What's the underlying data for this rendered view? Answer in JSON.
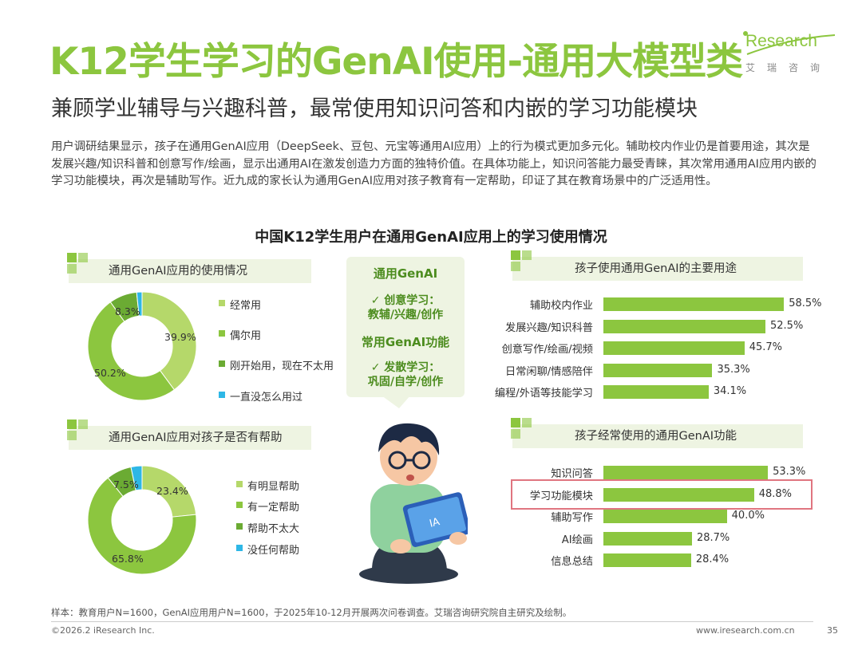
{
  "header": {
    "title": "K12学生学习的GenAI使用-通用大模型类",
    "subtitle": "兼顾学业辅导与兴趣科普，最常使用知识问答和内嵌的学习功能模块",
    "logo_word": "Research",
    "logo_cn": "艾瑞咨询"
  },
  "intro": "用户调研结果显示，孩子在通用GenAI应用（DeepSeek、豆包、元宝等通用AI应用）上的行为模式更加多元化。辅助校内作业仍是首要用途，其次是发展兴趣/知识科普和创意写作/绘画，显示出通用AI在激发创造力方面的独特价值。在具体功能上，知识问答能力最受青睐，其次常用通用AI应用内嵌的学习功能模块，再次是辅助写作。近九成的家长认为通用GenAI应用对孩子教育有一定帮助，印证了其在教育场景中的广泛适用性。",
  "main_title": "中国K12学生用户在通用GenAI应用上的学习使用情况",
  "bubble": {
    "line1": "通用GenAI",
    "line2": "✓ 创意学习：",
    "line3": "教辅/兴趣/创作",
    "line4": "常用GenAI功能",
    "line5": "✓ 发散学习：",
    "line6": "巩固/自学/创作"
  },
  "colors": {
    "green": "#8cc63f",
    "light": "#c5e08f",
    "mid": "#6bab33",
    "cyan": "#2eb7e6",
    "accent_box": "#e07580"
  },
  "chart_data": [
    {
      "type": "pie",
      "title": "通用GenAI应用的使用情况",
      "categories": [
        "经常用",
        "偶尔用",
        "刚开始用，现在不太用",
        "一直没怎么用过"
      ],
      "values": [
        39.9,
        50.2,
        8.3,
        1.6
      ],
      "labels": [
        "39.9%",
        "50.2%",
        "8.3%",
        ""
      ],
      "colors": [
        "#b5d86a",
        "#8cc63f",
        "#6bab33",
        "#2eb7e6"
      ]
    },
    {
      "type": "pie",
      "title": "通用GenAI应用对孩子是否有帮助",
      "categories": [
        "有明显帮助",
        "有一定帮助",
        "帮助不太大",
        "没任何帮助"
      ],
      "values": [
        23.4,
        65.8,
        7.5,
        3.3
      ],
      "labels": [
        "23.4%",
        "65.8%",
        "7.5%",
        ""
      ],
      "colors": [
        "#b5d86a",
        "#8cc63f",
        "#6bab33",
        "#2eb7e6"
      ]
    },
    {
      "type": "bar",
      "title": "孩子使用通用GenAI的主要用途",
      "categories": [
        "辅助校内作业",
        "发展兴趣/知识科普",
        "创意写作/绘画/视频",
        "日常闲聊/情感陪伴",
        "编程/外语等技能学习"
      ],
      "values": [
        58.5,
        52.5,
        45.7,
        35.3,
        34.1
      ],
      "labels": [
        "58.5%",
        "52.5%",
        "45.7%",
        "35.3%",
        "34.1%"
      ]
    },
    {
      "type": "bar",
      "title": "孩子经常使用的通用GenAI功能",
      "categories": [
        "知识问答",
        "学习功能模块",
        "辅助写作",
        "AI绘画",
        "信息总结"
      ],
      "values": [
        53.3,
        48.8,
        40.0,
        28.7,
        28.4
      ],
      "labels": [
        "53.3%",
        "48.8%",
        "40.0%",
        "28.7%",
        "28.4%"
      ]
    }
  ],
  "footer": {
    "note": "样本：教育用户N=1600，GenAI应用用户N=1600，于2025年10-12月开展两次问卷调查。艾瑞咨询研究院自主研究及绘制。",
    "copyright": "©2026.2 iResearch Inc.",
    "site": "www.iresearch.com.cn",
    "page": "35"
  }
}
